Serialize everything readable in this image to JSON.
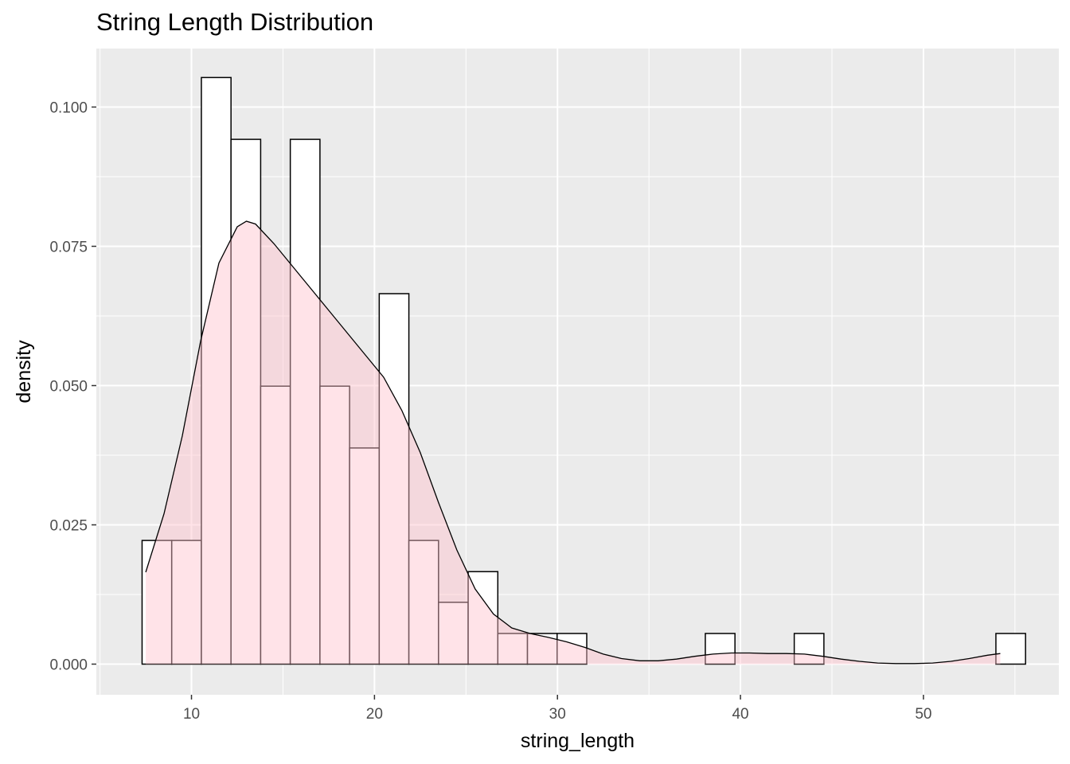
{
  "chart_data": {
    "type": "bar",
    "title": "String Length Distribution",
    "xlabel": "string_length",
    "ylabel": "density",
    "xlim": [
      4.8,
      57.4
    ],
    "ylim": [
      -0.0055,
      0.1105
    ],
    "x_ticks": [
      10,
      20,
      30,
      40,
      50
    ],
    "x_tick_labels": [
      "10",
      "20",
      "30",
      "40",
      "50"
    ],
    "y_ticks": [
      0.0,
      0.025,
      0.05,
      0.075,
      0.1
    ],
    "y_tick_labels": [
      "0.000",
      "0.025",
      "0.050",
      "0.075",
      "0.100"
    ],
    "grid": true,
    "panel_background": "#ebebeb",
    "bar_fill": "#ffffff",
    "bar_outline": "#000000",
    "density_fill": "#ffc0cb",
    "density_fill_opacity": 0.45,
    "histogram": {
      "bin_width": 1.62,
      "bins": [
        {
          "start": 7.3,
          "density": 0.0222
        },
        {
          "start": 8.92,
          "density": 0.0222
        },
        {
          "start": 10.54,
          "density": 0.1053
        },
        {
          "start": 12.16,
          "density": 0.0942
        },
        {
          "start": 13.78,
          "density": 0.0499
        },
        {
          "start": 15.4,
          "density": 0.0942
        },
        {
          "start": 17.02,
          "density": 0.0499
        },
        {
          "start": 18.64,
          "density": 0.0388
        },
        {
          "start": 20.26,
          "density": 0.0665
        },
        {
          "start": 21.88,
          "density": 0.0222
        },
        {
          "start": 23.5,
          "density": 0.0111
        },
        {
          "start": 25.12,
          "density": 0.0166
        },
        {
          "start": 26.74,
          "density": 0.0055
        },
        {
          "start": 28.36,
          "density": 0.0055
        },
        {
          "start": 29.98,
          "density": 0.0055
        },
        {
          "start": 38.08,
          "density": 0.0055
        },
        {
          "start": 42.94,
          "density": 0.0055
        },
        {
          "start": 53.96,
          "density": 0.0055
        }
      ]
    },
    "density_curve": {
      "x": [
        7.5,
        8.5,
        9.5,
        10.5,
        11.5,
        12.5,
        13.0,
        13.5,
        14.5,
        15.5,
        16.5,
        17.5,
        18.5,
        19.5,
        20.5,
        21.5,
        22.5,
        23.5,
        24.5,
        25.5,
        26.5,
        27.5,
        28.5,
        29.5,
        30.5,
        31.5,
        32.5,
        33.5,
        34.5,
        35.5,
        36.5,
        37.5,
        38.5,
        39.5,
        40.5,
        41.5,
        42.5,
        43.5,
        44.5,
        45.5,
        46.5,
        47.5,
        48.5,
        49.5,
        50.5,
        51.5,
        52.5,
        53.5,
        54.2
      ],
      "y": [
        0.0165,
        0.027,
        0.041,
        0.058,
        0.072,
        0.0785,
        0.0795,
        0.079,
        0.0755,
        0.0715,
        0.0675,
        0.0635,
        0.0595,
        0.0555,
        0.0515,
        0.0455,
        0.038,
        0.029,
        0.0205,
        0.0135,
        0.009,
        0.0065,
        0.0055,
        0.0048,
        0.004,
        0.003,
        0.0018,
        0.001,
        0.0006,
        0.0006,
        0.0009,
        0.0014,
        0.0018,
        0.002,
        0.002,
        0.0019,
        0.0019,
        0.0018,
        0.0014,
        0.0009,
        0.0005,
        0.0002,
        0.0001,
        0.0001,
        0.0002,
        0.0005,
        0.001,
        0.0016,
        0.0019
      ]
    }
  }
}
